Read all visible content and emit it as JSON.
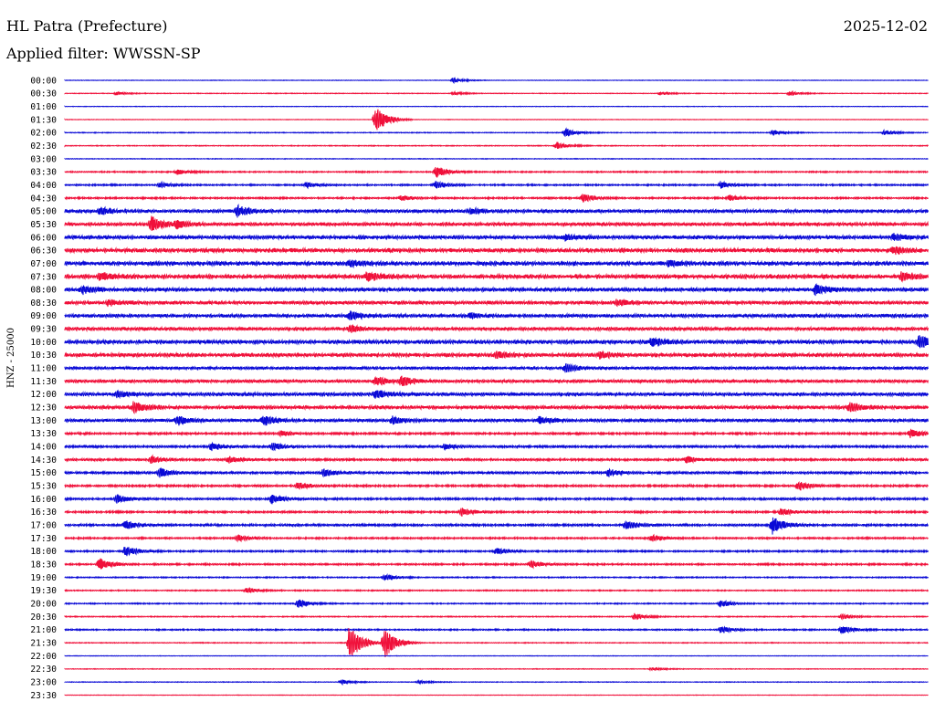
{
  "header": {
    "station": "HL Patra (Prefecture)",
    "date": "2025-12-02",
    "filter": "Applied filter: WWSSN-SP"
  },
  "colors": {
    "blue": "#0a0ad6",
    "red": "#f0103a"
  },
  "chart_data": {
    "type": "line",
    "title": "HL Patra (Prefecture)",
    "subtitle": "Applied filter: WWSSN-SP",
    "ylabel": "HNZ - 25000",
    "xlabel": "",
    "grid": false,
    "series": [
      {
        "label": "00:00",
        "color": "blue",
        "noise": 0.3,
        "events": [
          [
            0.45,
            3
          ]
        ]
      },
      {
        "label": "00:30",
        "color": "red",
        "noise": 0.4,
        "events": [
          [
            0.06,
            2
          ],
          [
            0.45,
            2
          ],
          [
            0.69,
            2
          ],
          [
            0.84,
            3
          ]
        ]
      },
      {
        "label": "01:00",
        "color": "blue",
        "noise": 0.3,
        "events": []
      },
      {
        "label": "01:30",
        "color": "red",
        "noise": 0.3,
        "events": [
          [
            0.36,
            16
          ]
        ]
      },
      {
        "label": "02:00",
        "color": "blue",
        "noise": 0.5,
        "events": [
          [
            0.58,
            5
          ],
          [
            0.82,
            3
          ],
          [
            0.95,
            3
          ]
        ]
      },
      {
        "label": "02:30",
        "color": "red",
        "noise": 0.5,
        "events": [
          [
            0.57,
            4
          ]
        ]
      },
      {
        "label": "03:00",
        "color": "blue",
        "noise": 0.4,
        "events": []
      },
      {
        "label": "03:30",
        "color": "red",
        "noise": 0.8,
        "events": [
          [
            0.13,
            3
          ],
          [
            0.43,
            7
          ]
        ]
      },
      {
        "label": "04:00",
        "color": "blue",
        "noise": 0.9,
        "events": [
          [
            0.11,
            3
          ],
          [
            0.28,
            3
          ],
          [
            0.43,
            4
          ],
          [
            0.76,
            4
          ]
        ]
      },
      {
        "label": "04:30",
        "color": "red",
        "noise": 1.0,
        "events": [
          [
            0.39,
            3
          ],
          [
            0.6,
            5
          ],
          [
            0.77,
            3
          ]
        ]
      },
      {
        "label": "05:00",
        "color": "blue",
        "noise": 2.0,
        "events": [
          [
            0.04,
            4
          ],
          [
            0.2,
            6
          ],
          [
            0.47,
            3
          ]
        ]
      },
      {
        "label": "05:30",
        "color": "red",
        "noise": 2.0,
        "events": [
          [
            0.1,
            9
          ],
          [
            0.13,
            4
          ]
        ]
      },
      {
        "label": "06:00",
        "color": "blue",
        "noise": 2.2,
        "events": [
          [
            0.58,
            3
          ],
          [
            0.96,
            3
          ]
        ]
      },
      {
        "label": "06:30",
        "color": "red",
        "noise": 2.4,
        "events": [
          [
            0.96,
            4
          ]
        ]
      },
      {
        "label": "07:00",
        "color": "blue",
        "noise": 2.4,
        "events": [
          [
            0.33,
            3
          ],
          [
            0.7,
            3
          ]
        ]
      },
      {
        "label": "07:30",
        "color": "red",
        "noise": 2.5,
        "events": [
          [
            0.04,
            4
          ],
          [
            0.35,
            5
          ],
          [
            0.97,
            5
          ]
        ]
      },
      {
        "label": "08:00",
        "color": "blue",
        "noise": 2.2,
        "events": [
          [
            0.02,
            4
          ],
          [
            0.87,
            6
          ]
        ]
      },
      {
        "label": "08:30",
        "color": "red",
        "noise": 2.0,
        "events": [
          [
            0.05,
            3
          ],
          [
            0.64,
            3
          ]
        ]
      },
      {
        "label": "09:00",
        "color": "blue",
        "noise": 2.0,
        "events": [
          [
            0.33,
            5
          ],
          [
            0.47,
            3
          ]
        ]
      },
      {
        "label": "09:30",
        "color": "red",
        "noise": 2.0,
        "events": [
          [
            0.33,
            4
          ]
        ]
      },
      {
        "label": "10:00",
        "color": "blue",
        "noise": 2.3,
        "events": [
          [
            0.68,
            5
          ],
          [
            0.99,
            8
          ]
        ]
      },
      {
        "label": "10:30",
        "color": "red",
        "noise": 2.2,
        "events": [
          [
            0.5,
            4
          ],
          [
            0.62,
            4
          ]
        ]
      },
      {
        "label": "11:00",
        "color": "blue",
        "noise": 1.6,
        "events": [
          [
            0.58,
            5
          ]
        ]
      },
      {
        "label": "11:30",
        "color": "red",
        "noise": 1.8,
        "events": [
          [
            0.36,
            5
          ],
          [
            0.39,
            5
          ]
        ]
      },
      {
        "label": "12:00",
        "color": "blue",
        "noise": 2.0,
        "events": [
          [
            0.06,
            4
          ],
          [
            0.36,
            5
          ]
        ]
      },
      {
        "label": "12:30",
        "color": "red",
        "noise": 2.0,
        "events": [
          [
            0.08,
            6
          ],
          [
            0.91,
            5
          ]
        ]
      },
      {
        "label": "13:00",
        "color": "blue",
        "noise": 1.8,
        "events": [
          [
            0.13,
            5
          ],
          [
            0.23,
            6
          ],
          [
            0.38,
            4
          ],
          [
            0.55,
            4
          ]
        ]
      },
      {
        "label": "13:30",
        "color": "red",
        "noise": 1.2,
        "events": [
          [
            0.25,
            3
          ],
          [
            0.98,
            5
          ]
        ]
      },
      {
        "label": "14:00",
        "color": "blue",
        "noise": 1.4,
        "events": [
          [
            0.17,
            4
          ],
          [
            0.24,
            4
          ],
          [
            0.44,
            3
          ]
        ]
      },
      {
        "label": "14:30",
        "color": "red",
        "noise": 1.3,
        "events": [
          [
            0.1,
            4
          ],
          [
            0.19,
            4
          ],
          [
            0.72,
            4
          ]
        ]
      },
      {
        "label": "15:00",
        "color": "blue",
        "noise": 1.4,
        "events": [
          [
            0.11,
            5
          ],
          [
            0.3,
            4
          ],
          [
            0.63,
            4
          ]
        ]
      },
      {
        "label": "15:30",
        "color": "red",
        "noise": 1.2,
        "events": [
          [
            0.27,
            4
          ],
          [
            0.85,
            5
          ]
        ]
      },
      {
        "label": "16:00",
        "color": "blue",
        "noise": 1.2,
        "events": [
          [
            0.06,
            5
          ],
          [
            0.24,
            5
          ]
        ]
      },
      {
        "label": "16:30",
        "color": "red",
        "noise": 1.1,
        "events": [
          [
            0.46,
            4
          ],
          [
            0.83,
            4
          ]
        ]
      },
      {
        "label": "17:00",
        "color": "blue",
        "noise": 1.3,
        "events": [
          [
            0.07,
            5
          ],
          [
            0.65,
            5
          ],
          [
            0.82,
            10
          ]
        ]
      },
      {
        "label": "17:30",
        "color": "red",
        "noise": 1.0,
        "events": [
          [
            0.2,
            4
          ],
          [
            0.68,
            4
          ]
        ]
      },
      {
        "label": "18:00",
        "color": "blue",
        "noise": 1.0,
        "events": [
          [
            0.07,
            6
          ],
          [
            0.5,
            4
          ]
        ]
      },
      {
        "label": "18:30",
        "color": "red",
        "noise": 1.0,
        "events": [
          [
            0.04,
            7
          ],
          [
            0.54,
            4
          ]
        ]
      },
      {
        "label": "19:00",
        "color": "blue",
        "noise": 0.7,
        "events": [
          [
            0.37,
            4
          ]
        ]
      },
      {
        "label": "19:30",
        "color": "red",
        "noise": 0.7,
        "events": [
          [
            0.21,
            3
          ]
        ]
      },
      {
        "label": "20:00",
        "color": "blue",
        "noise": 0.7,
        "events": [
          [
            0.27,
            5
          ],
          [
            0.76,
            4
          ]
        ]
      },
      {
        "label": "20:30",
        "color": "red",
        "noise": 0.6,
        "events": [
          [
            0.66,
            4
          ],
          [
            0.9,
            3
          ]
        ]
      },
      {
        "label": "21:00",
        "color": "blue",
        "noise": 0.8,
        "events": [
          [
            0.76,
            4
          ],
          [
            0.9,
            5
          ]
        ]
      },
      {
        "label": "21:30",
        "color": "red",
        "noise": 0.5,
        "events": [
          [
            0.33,
            20
          ],
          [
            0.37,
            18
          ]
        ]
      },
      {
        "label": "22:00",
        "color": "blue",
        "noise": 0.3,
        "events": []
      },
      {
        "label": "22:30",
        "color": "red",
        "noise": 0.4,
        "events": [
          [
            0.68,
            2
          ]
        ]
      },
      {
        "label": "23:00",
        "color": "blue",
        "noise": 0.4,
        "events": [
          [
            0.32,
            3
          ],
          [
            0.41,
            2
          ]
        ]
      },
      {
        "label": "23:30",
        "color": "red",
        "noise": 0.3,
        "events": []
      }
    ]
  }
}
